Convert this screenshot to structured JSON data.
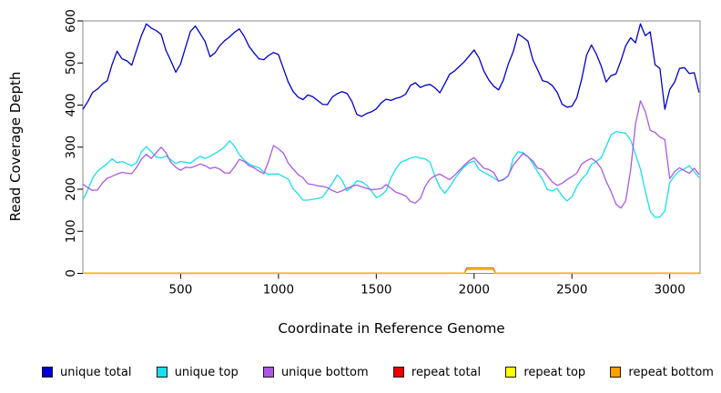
{
  "chart_data": {
    "type": "line",
    "title": "",
    "xlabel": "Coordinate in Reference Genome",
    "ylabel": "Read Coverage Depth",
    "xlim": [
      0,
      3155
    ],
    "ylim": [
      0,
      600
    ],
    "x_ticks": [
      500,
      1000,
      1500,
      2000,
      2500,
      3000
    ],
    "y_ticks": [
      0,
      100,
      200,
      300,
      400,
      500,
      600
    ],
    "grid": false,
    "legend_position": "bottom",
    "box_color": "#8a8a8a",
    "x_start": 0,
    "x_step": 25,
    "series": [
      {
        "name": "unique total",
        "color": "#0000D0",
        "values": [
          390,
          408,
          430,
          438,
          450,
          458,
          497,
          528,
          510,
          505,
          495,
          531,
          566,
          593,
          583,
          577,
          568,
          530,
          505,
          478,
          498,
          537,
          575,
          588,
          570,
          551,
          515,
          524,
          541,
          553,
          562,
          573,
          581,
          563,
          539,
          524,
          510,
          508,
          518,
          525,
          520,
          487,
          455,
          432,
          419,
          413,
          424,
          420,
          411,
          402,
          401,
          419,
          427,
          432,
          428,
          409,
          378,
          373,
          380,
          384,
          391,
          405,
          414,
          411,
          416,
          419,
          426,
          447,
          453,
          442,
          447,
          449,
          441,
          429,
          451,
          473,
          481,
          492,
          503,
          517,
          531,
          512,
          481,
          460,
          445,
          436,
          460,
          498,
          527,
          569,
          561,
          552,
          508,
          484,
          458,
          455,
          446,
          430,
          402,
          395,
          397,
          417,
          462,
          519,
          543,
          521,
          492,
          455,
          470,
          474,
          505,
          541,
          560,
          548,
          593,
          565,
          574,
          496,
          487,
          390,
          437,
          455,
          487,
          489,
          475,
          477,
          430
        ]
      },
      {
        "name": "unique top",
        "color": "#18DFEE",
        "values": [
          175,
          198,
          226,
          243,
          252,
          261,
          272,
          263,
          266,
          261,
          256,
          263,
          290,
          301,
          289,
          277,
          274,
          279,
          270,
          261,
          266,
          264,
          262,
          271,
          278,
          273,
          278,
          285,
          292,
          301,
          315,
          303,
          282,
          269,
          260,
          255,
          251,
          241,
          235,
          236,
          236,
          230,
          224,
          201,
          189,
          174,
          174,
          176,
          178,
          181,
          197,
          214,
          234,
          222,
          196,
          205,
          220,
          218,
          210,
          196,
          180,
          186,
          196,
          227,
          248,
          264,
          269,
          274,
          277,
          274,
          272,
          264,
          231,
          205,
          190,
          205,
          224,
          240,
          253,
          263,
          267,
          247,
          240,
          234,
          227,
          219,
          224,
          231,
          273,
          289,
          287,
          278,
          261,
          241,
          223,
          199,
          196,
          202,
          184,
          172,
          182,
          206,
          224,
          236,
          259,
          266,
          275,
          301,
          329,
          337,
          335,
          333,
          317,
          283,
          248,
          196,
          148,
          133,
          134,
          148,
          216,
          232,
          244,
          248,
          256,
          241,
          228
        ]
      },
      {
        "name": "unique bottom",
        "color": "#AC58E2",
        "values": [
          212,
          204,
          197,
          198,
          215,
          226,
          231,
          236,
          240,
          238,
          237,
          252,
          272,
          283,
          273,
          287,
          300,
          287,
          264,
          252,
          245,
          252,
          251,
          255,
          260,
          256,
          249,
          252,
          248,
          239,
          238,
          253,
          271,
          266,
          256,
          251,
          243,
          237,
          268,
          304,
          296,
          286,
          262,
          248,
          235,
          227,
          213,
          211,
          208,
          207,
          204,
          197,
          192,
          196,
          202,
          207,
          210,
          206,
          202,
          199,
          200,
          201,
          211,
          202,
          193,
          189,
          184,
          171,
          167,
          178,
          207,
          224,
          232,
          236,
          229,
          223,
          233,
          245,
          257,
          268,
          275,
          262,
          250,
          247,
          240,
          219,
          222,
          233,
          257,
          271,
          285,
          277,
          267,
          250,
          247,
          232,
          217,
          209,
          214,
          223,
          230,
          238,
          260,
          268,
          273,
          265,
          249,
          219,
          195,
          165,
          155,
          172,
          245,
          355,
          410,
          385,
          340,
          335,
          324,
          318,
          225,
          242,
          251,
          244,
          238,
          250,
          235
        ]
      },
      {
        "name": "repeat total",
        "color": "#EE0000",
        "x": [
          0,
          1950,
          1962,
          2098,
          2110,
          3150
        ],
        "values": [
          0,
          0,
          12,
          12,
          0,
          0
        ]
      },
      {
        "name": "repeat top",
        "color": "#FFFF00",
        "x": [
          0,
          1952,
          1964,
          2096,
          2108,
          3150
        ],
        "values": [
          0,
          0,
          10.5,
          10.5,
          0,
          0
        ]
      },
      {
        "name": "repeat bottom",
        "color": "#FFA000",
        "x": [
          0,
          1950,
          1962,
          2098,
          2110,
          3150
        ],
        "values": [
          0.8,
          0.8,
          8.8,
          8.8,
          0.8,
          0.8
        ]
      }
    ]
  }
}
